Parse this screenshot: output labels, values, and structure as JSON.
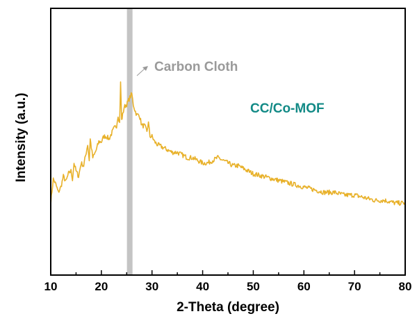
{
  "chart_data": {
    "type": "line",
    "xlabel": "2-Theta (degree)",
    "ylabel": "Intensity (a.u.)",
    "xlim": [
      10,
      80
    ],
    "ylim": [
      0,
      1
    ],
    "xticks": [
      "10",
      "20",
      "30",
      "40",
      "50",
      "60",
      "70",
      "80"
    ],
    "yticks_labeled": false,
    "grid": false,
    "series": [
      {
        "name": "CC/Co-MOF",
        "color": "#e8b12a",
        "x": [
          10,
          10.5,
          11,
          11.5,
          12,
          12.5,
          13,
          13.5,
          14,
          14.3,
          14.6,
          15,
          15.5,
          16,
          16.5,
          17,
          17.3,
          17.6,
          17.8,
          18,
          18.3,
          18.6,
          19,
          19.5,
          20,
          20.5,
          21,
          21.5,
          22,
          22.5,
          23,
          23.3,
          23.6,
          23.8,
          24,
          24.2,
          24.5,
          25,
          25.5,
          26,
          26.3,
          26.6,
          27,
          27.5,
          28,
          28.5,
          29,
          29.3,
          29.6,
          30,
          30.5,
          31,
          32,
          33,
          34,
          35,
          36,
          37,
          38,
          39,
          40,
          41,
          42,
          43,
          44,
          45,
          46,
          47,
          48,
          49,
          50,
          52,
          54,
          56,
          58,
          60,
          62,
          64,
          66,
          68,
          70,
          72,
          74,
          76,
          78,
          80
        ],
        "y": [
          0.27,
          0.36,
          0.34,
          0.31,
          0.33,
          0.37,
          0.35,
          0.38,
          0.39,
          0.36,
          0.42,
          0.39,
          0.37,
          0.42,
          0.41,
          0.46,
          0.49,
          0.43,
          0.51,
          0.48,
          0.44,
          0.45,
          0.47,
          0.5,
          0.5,
          0.52,
          0.52,
          0.51,
          0.53,
          0.55,
          0.56,
          0.6,
          0.57,
          0.72,
          0.58,
          0.6,
          0.63,
          0.64,
          0.66,
          0.68,
          0.64,
          0.62,
          0.6,
          0.6,
          0.56,
          0.56,
          0.54,
          0.57,
          0.52,
          0.52,
          0.5,
          0.49,
          0.48,
          0.47,
          0.46,
          0.46,
          0.45,
          0.44,
          0.44,
          0.43,
          0.42,
          0.42,
          0.43,
          0.44,
          0.43,
          0.42,
          0.41,
          0.41,
          0.4,
          0.39,
          0.38,
          0.37,
          0.36,
          0.35,
          0.34,
          0.33,
          0.32,
          0.31,
          0.31,
          0.3,
          0.3,
          0.29,
          0.28,
          0.28,
          0.27,
          0.27
        ]
      }
    ],
    "reference_band": {
      "x": 25.6,
      "color": "#c4c4c4"
    },
    "annotations": [
      {
        "text": "Carbon Cloth",
        "color": "#9a9a9a"
      },
      {
        "text": "CC/Co-MOF",
        "color": "#128a86"
      }
    ]
  }
}
